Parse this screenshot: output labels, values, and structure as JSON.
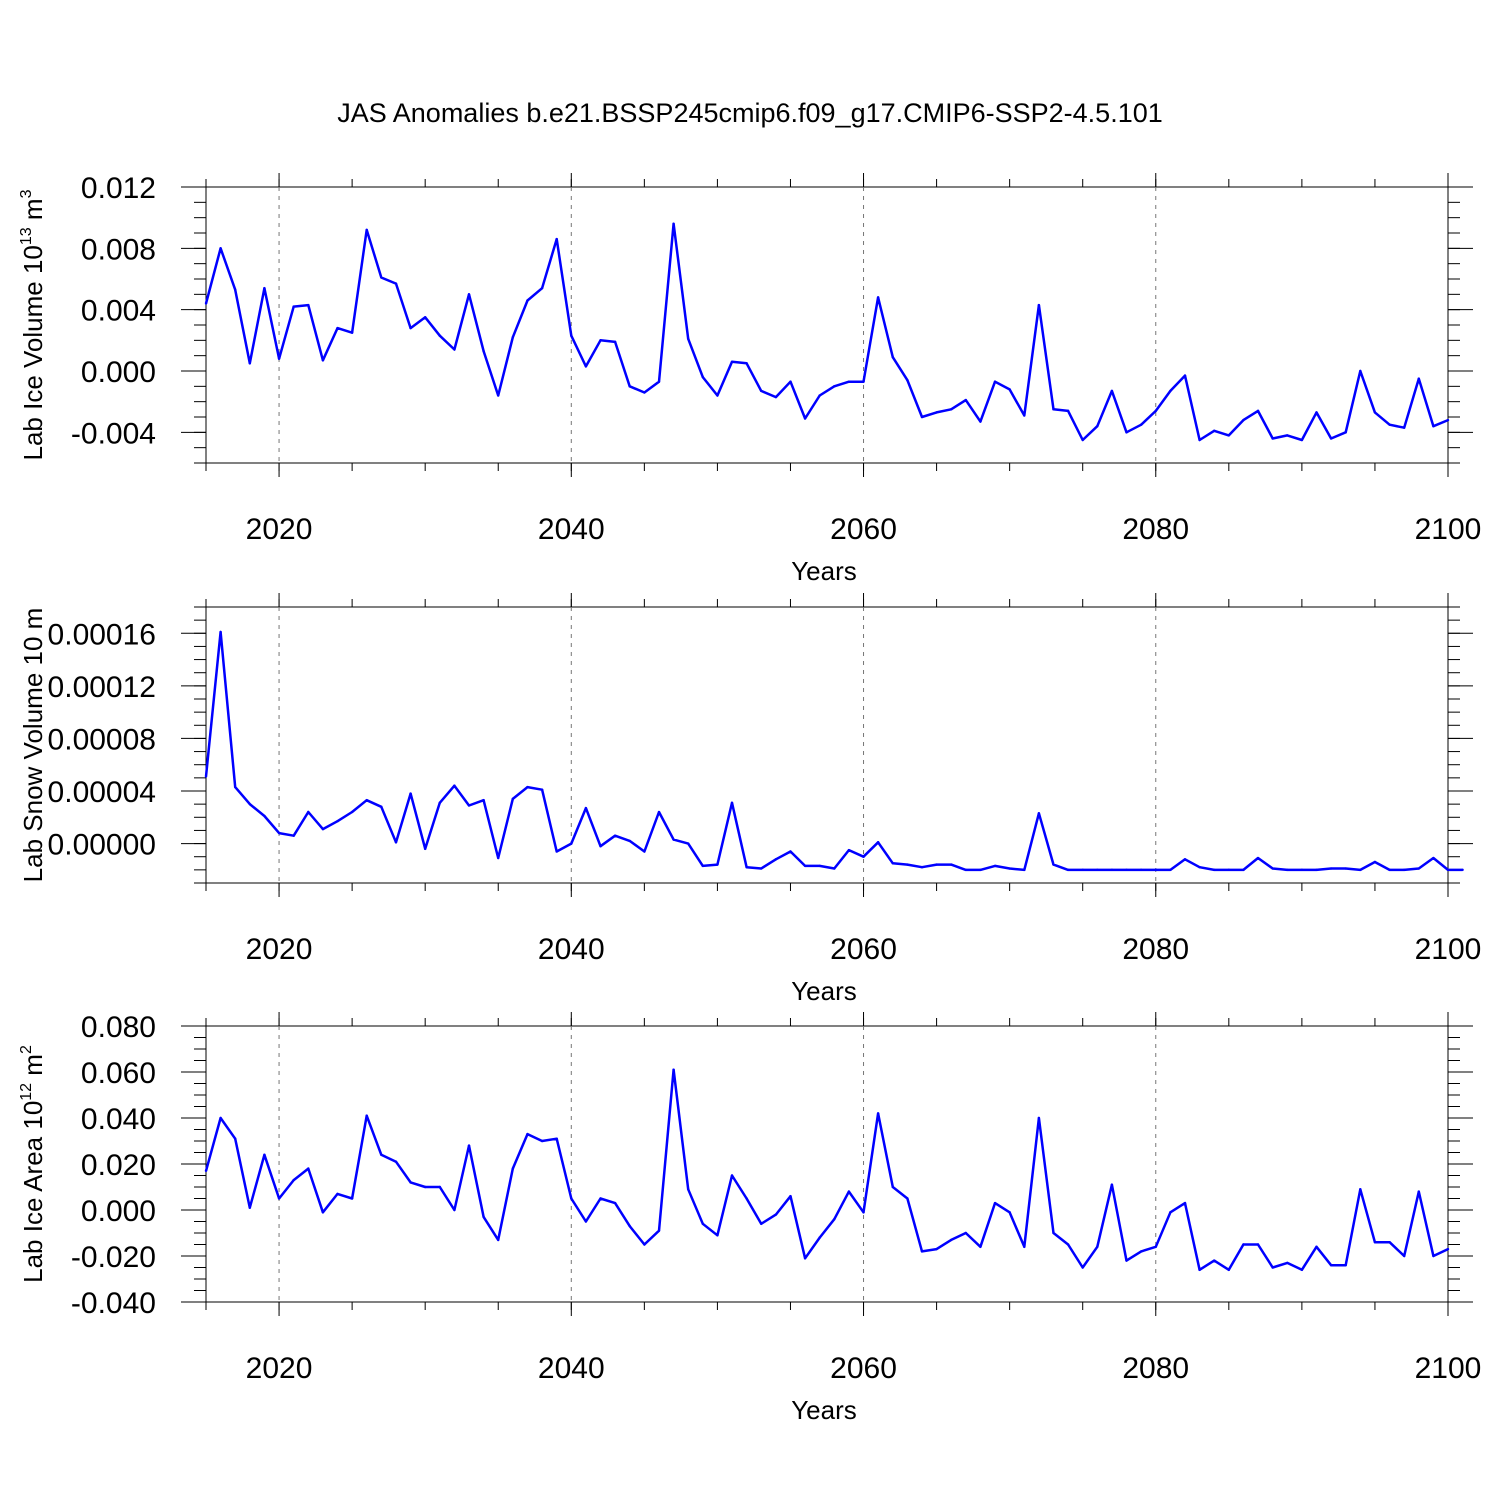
{
  "title": "JAS Anomalies b.e21.BSSP245cmip6.f09_g17.CMIP6-SSP2-4.5.101",
  "colors": {
    "line": "#0000ff",
    "axis": "#000000",
    "grid": "#777777"
  },
  "chart_data": [
    {
      "type": "line",
      "xlabel": "Years",
      "ylabel": "Lab Ice Volume 10",
      "ylabel_exp": "13",
      "ylabel_unit": "m",
      "ylabel_unit_exp": "3",
      "xlim": [
        2015,
        2100
      ],
      "ylim": [
        -0.006,
        0.012
      ],
      "xticks": [
        "2020",
        "2040",
        "2060",
        "2080",
        "2100"
      ],
      "yticks": [
        "0.012",
        "0.008",
        "0.004",
        "0.000",
        "-0.004"
      ],
      "grid": "vertical dashed at major x ticks",
      "x_start": 2015,
      "x_step": 1,
      "values": [
        0.0044,
        0.008,
        0.0053,
        0.0005,
        0.0054,
        0.0008,
        0.0042,
        0.0043,
        0.0007,
        0.0028,
        0.0025,
        0.0092,
        0.0061,
        0.0057,
        0.0028,
        0.0035,
        0.0023,
        0.0014,
        0.005,
        0.0013,
        -0.0016,
        0.0022,
        0.0046,
        0.0054,
        0.0086,
        0.0023,
        0.0003,
        0.002,
        0.0019,
        -0.001,
        -0.0014,
        -0.0007,
        0.0096,
        0.0021,
        -0.0004,
        -0.0016,
        0.0006,
        0.0005,
        -0.0013,
        -0.0017,
        -0.0007,
        -0.0031,
        -0.0016,
        -0.001,
        -0.0007,
        -0.0007,
        0.0048,
        0.0009,
        -0.0006,
        -0.003,
        -0.0027,
        -0.0025,
        -0.0019,
        -0.0033,
        -0.0007,
        -0.0012,
        -0.0029,
        0.0043,
        -0.0025,
        -0.0026,
        -0.0045,
        -0.0036,
        -0.0013,
        -0.004,
        -0.0035,
        -0.0026,
        -0.0013,
        -0.0003,
        -0.0045,
        -0.0039,
        -0.0042,
        -0.0032,
        -0.0026,
        -0.0044,
        -0.0042,
        -0.0045,
        -0.0027,
        -0.0044,
        -0.004,
        0.0,
        -0.0027,
        -0.0035,
        -0.0037,
        -0.0005,
        -0.0036,
        -0.0032
      ]
    },
    {
      "type": "line",
      "xlabel": "Years",
      "ylabel": "Lab Snow Volume 10",
      "ylabel_exp": "",
      "ylabel_unit": "m",
      "ylabel_unit_exp": "",
      "xlim": [
        2015,
        2100
      ],
      "ylim": [
        -3e-05,
        0.00018
      ],
      "xticks": [
        "2020",
        "2040",
        "2060",
        "2080",
        "2100"
      ],
      "yticks": [
        "0.00016",
        "0.00012",
        "0.00008",
        "0.00004",
        "0.00000"
      ],
      "grid": "vertical dashed at major x ticks",
      "x_start": 2015,
      "x_step": 1,
      "values": [
        5.1e-05,
        0.000161,
        4.3e-05,
        3e-05,
        2.1e-05,
        8e-06,
        6e-06,
        2.4e-05,
        1.1e-05,
        1.7e-05,
        2.4e-05,
        3.3e-05,
        2.8e-05,
        1e-06,
        3.8e-05,
        -4e-06,
        3.1e-05,
        4.4e-05,
        2.9e-05,
        3.3e-05,
        -1.1e-05,
        3.4e-05,
        4.3e-05,
        4.1e-05,
        -6e-06,
        0.0,
        2.7e-05,
        -2e-06,
        6e-06,
        2e-06,
        -6e-06,
        2.4e-05,
        3e-06,
        0.0,
        -1.7e-05,
        -1.6e-05,
        3.1e-05,
        -1.8e-05,
        -1.9e-05,
        -1.2e-05,
        -6e-06,
        -1.7e-05,
        -1.7e-05,
        -1.9e-05,
        -5e-06,
        -1e-05,
        1e-06,
        -1.5e-05,
        -1.6e-05,
        -1.8e-05,
        -1.6e-05,
        -1.6e-05,
        -2e-05,
        -2e-05,
        -1.7e-05,
        -1.9e-05,
        -2e-05,
        2.3e-05,
        -1.6e-05,
        -2e-05,
        -2e-05,
        -2e-05,
        -2e-05,
        -2e-05,
        -2e-05,
        -2e-05,
        -2e-05,
        -1.2e-05,
        -1.8e-05,
        -2e-05,
        -2e-05,
        -2e-05,
        -1.1e-05,
        -1.9e-05,
        -2e-05,
        -2e-05,
        -2e-05,
        -1.9e-05,
        -1.9e-05,
        -2e-05,
        -1.4e-05,
        -2e-05,
        -2e-05,
        -1.9e-05,
        -1.1e-05,
        -2e-05,
        -2e-05
      ]
    },
    {
      "type": "line",
      "xlabel": "Years",
      "ylabel": "Lab Ice Area 10",
      "ylabel_exp": "12",
      "ylabel_unit": "m",
      "ylabel_unit_exp": "2",
      "xlim": [
        2015,
        2100
      ],
      "ylim": [
        -0.04,
        0.08
      ],
      "xticks": [
        "2020",
        "2040",
        "2060",
        "2080",
        "2100"
      ],
      "yticks": [
        "0.080",
        "0.060",
        "0.040",
        "0.020",
        "0.000",
        "-0.020",
        "-0.040"
      ],
      "grid": "vertical dashed at major x ticks",
      "x_start": 2015,
      "x_step": 1,
      "values": [
        0.017,
        0.04,
        0.031,
        0.001,
        0.024,
        0.005,
        0.013,
        0.018,
        -0.001,
        0.007,
        0.005,
        0.041,
        0.024,
        0.021,
        0.012,
        0.01,
        0.01,
        0.0,
        0.028,
        -0.003,
        -0.013,
        0.018,
        0.033,
        0.03,
        0.031,
        0.005,
        -0.005,
        0.005,
        0.003,
        -0.007,
        -0.015,
        -0.009,
        0.061,
        0.009,
        -0.006,
        -0.011,
        0.015,
        0.005,
        -0.006,
        -0.002,
        0.006,
        -0.021,
        -0.012,
        -0.004,
        0.008,
        -0.001,
        0.042,
        0.01,
        0.005,
        -0.018,
        -0.017,
        -0.013,
        -0.01,
        -0.016,
        0.003,
        -0.001,
        -0.016,
        0.04,
        -0.01,
        -0.015,
        -0.025,
        -0.016,
        0.011,
        -0.022,
        -0.018,
        -0.016,
        -0.001,
        0.003,
        -0.026,
        -0.022,
        -0.026,
        -0.015,
        -0.015,
        -0.025,
        -0.023,
        -0.026,
        -0.016,
        -0.024,
        -0.024,
        0.009,
        -0.014,
        -0.014,
        -0.02,
        0.008,
        -0.02,
        -0.017
      ]
    }
  ]
}
